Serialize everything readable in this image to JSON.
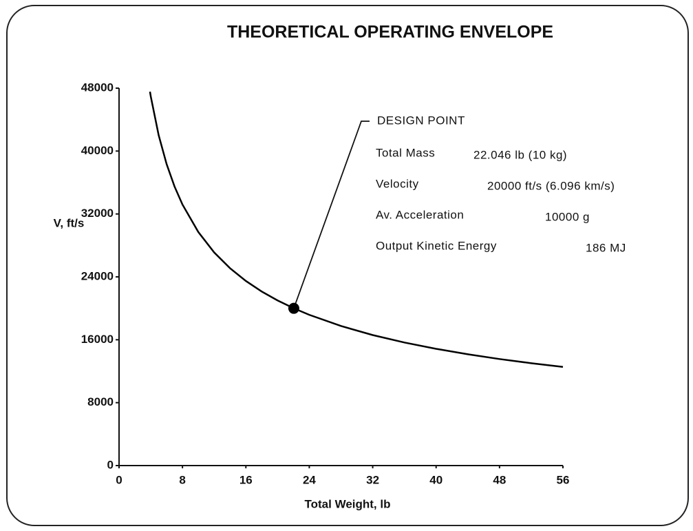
{
  "chart_data": {
    "type": "line",
    "title": "THEORETICAL OPERATING ENVELOPE",
    "x_label": "Total Weight, lb",
    "y_label": "V, ft/s",
    "x": [
      3.9,
      4,
      5,
      6,
      7,
      8,
      10,
      12,
      14,
      16,
      18,
      20,
      22.046,
      24,
      28,
      32,
      36,
      40,
      44,
      48,
      52,
      56
    ],
    "series": [
      {
        "color": "#000000",
        "values": [
          47550,
          46950,
          42000,
          38340,
          35490,
          33200,
          29700,
          27110,
          25100,
          23480,
          22130,
          21000,
          20000,
          19170,
          17750,
          16600,
          15650,
          14850,
          14160,
          13550,
          13020,
          12550
        ]
      }
    ],
    "xlim": [
      0,
      56
    ],
    "ylim": [
      0,
      48000
    ],
    "xticks": [
      0,
      8,
      16,
      24,
      32,
      40,
      48,
      56
    ],
    "yticks": [
      0,
      8000,
      16000,
      24000,
      32000,
      40000,
      48000
    ],
    "grid": false,
    "design_point": {
      "label": "DESIGN POINT",
      "x": 22.046,
      "y": 20000
    },
    "annotations": [
      {
        "label": "Total Mass",
        "value": "22.046 lb (10 kg)"
      },
      {
        "label": "Velocity",
        "value": "20000 ft/s (6.096 km/s)"
      },
      {
        "label": "Av. Acceleration",
        "value": "10000 g"
      },
      {
        "label": "Output Kinetic Energy",
        "value": "186 MJ"
      }
    ]
  }
}
